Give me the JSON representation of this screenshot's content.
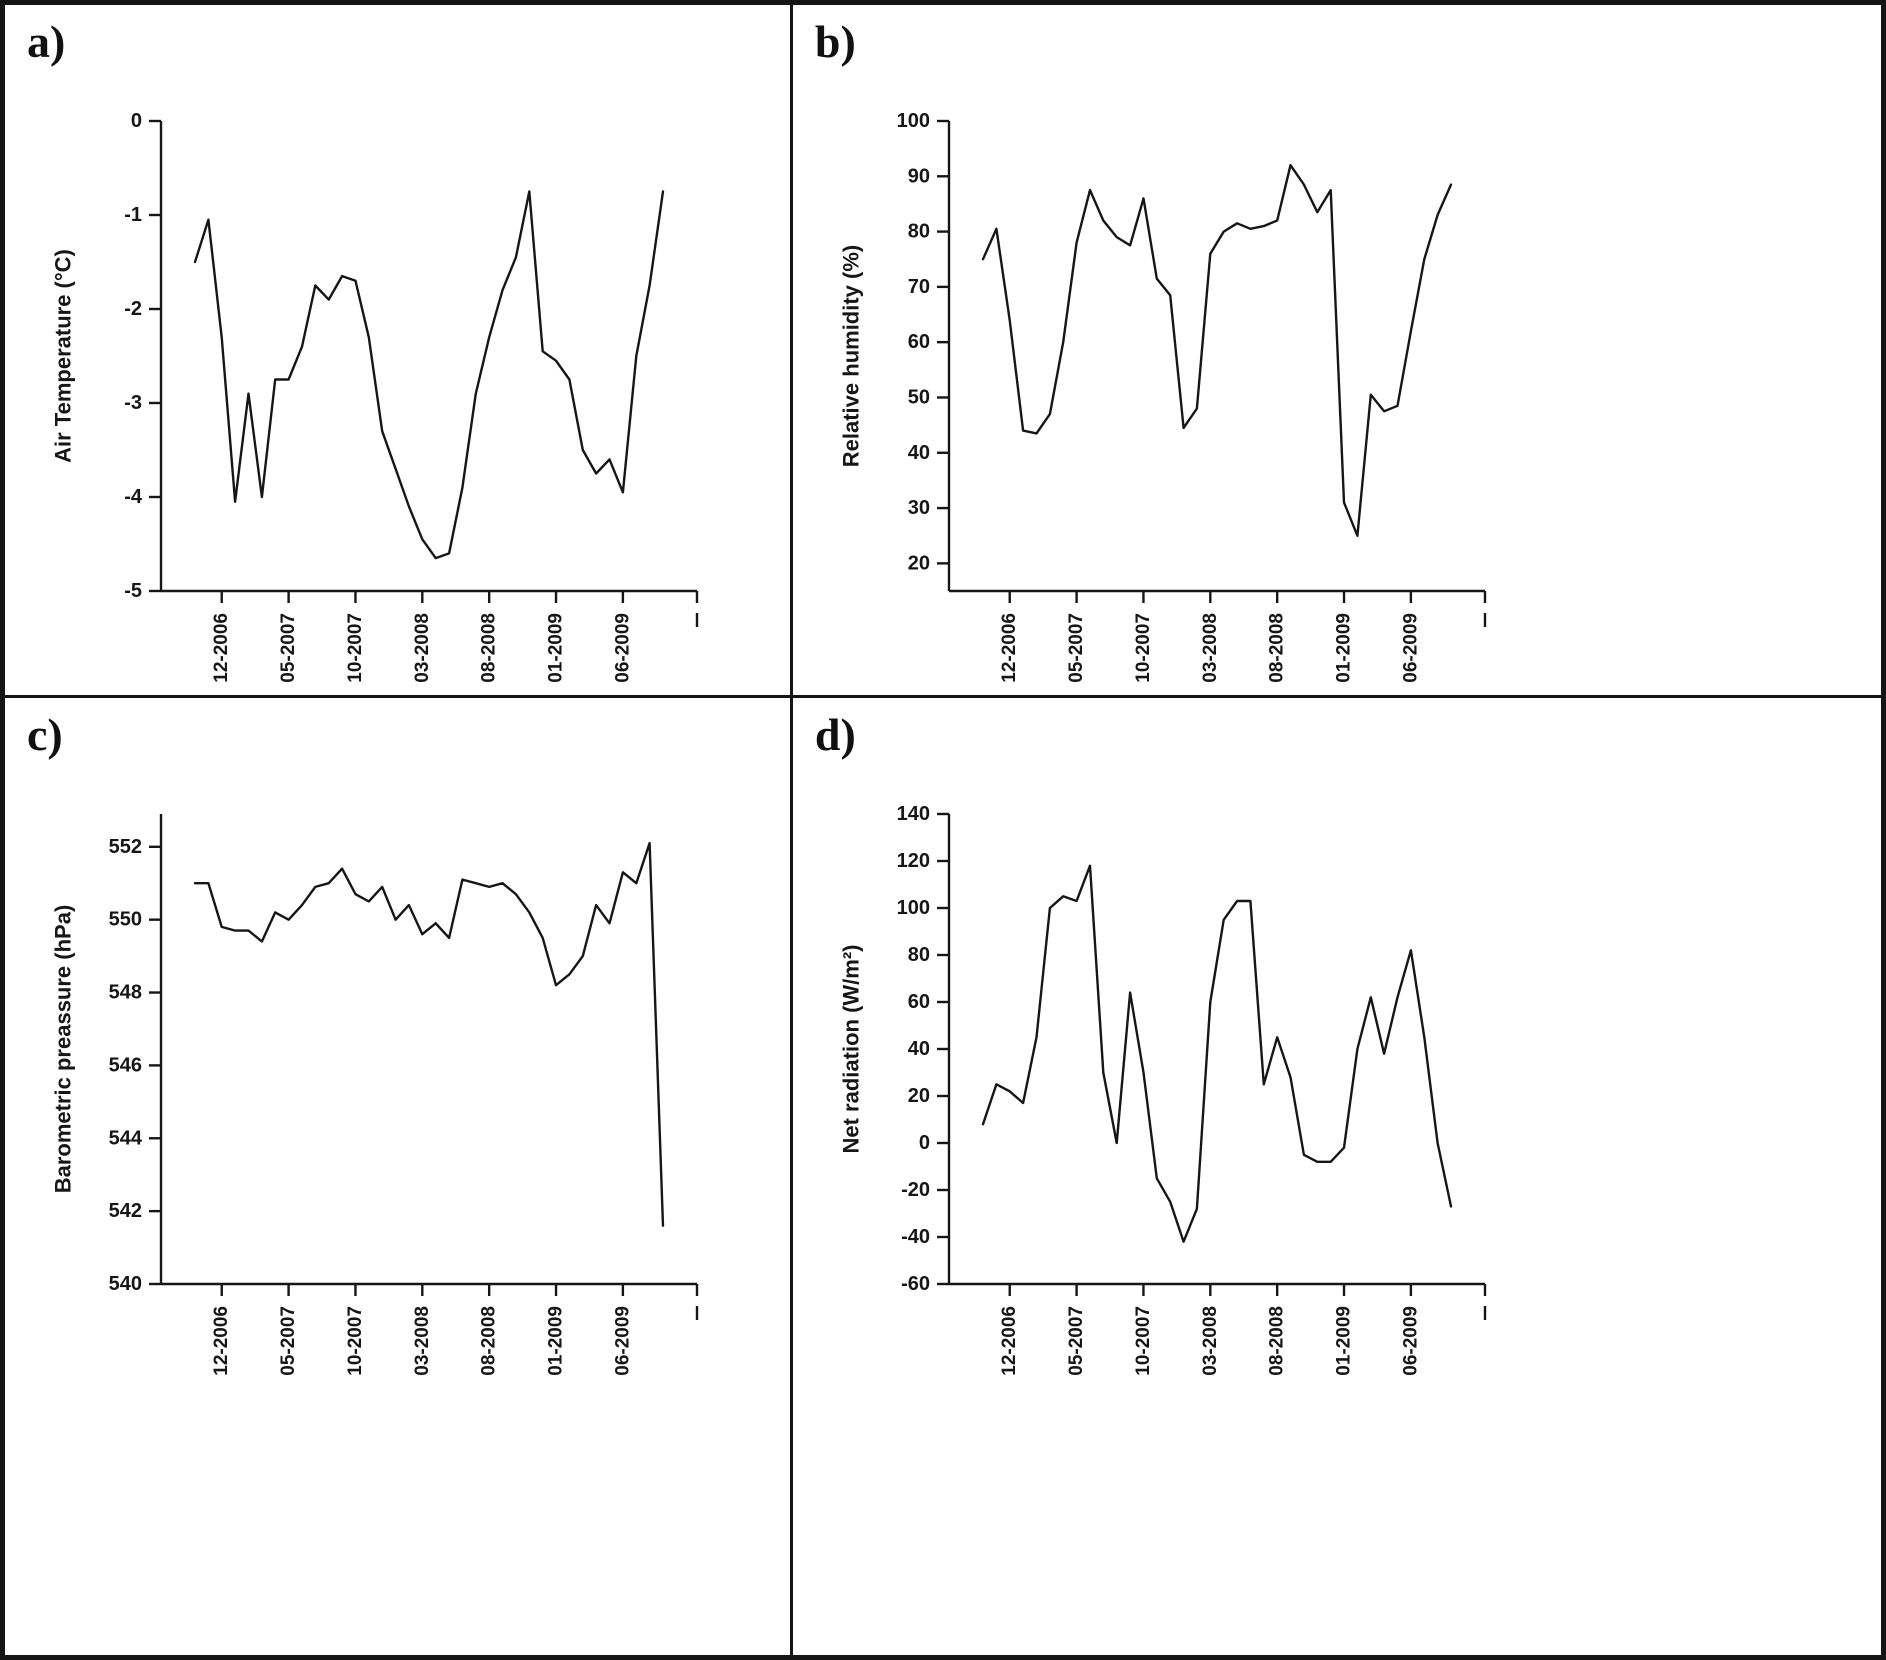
{
  "figure": {
    "background": "#ffffff",
    "border_color": "#151515"
  },
  "chart_data": [
    {
      "type": "line",
      "panel_label": "a)",
      "title": "",
      "xlabel": "",
      "ylabel": "Air Temperature (°C)",
      "line_color": "#161616",
      "grid": false,
      "legend": "none",
      "ylim": [
        -5,
        0
      ],
      "yticks": [
        0,
        -1,
        -2,
        -3,
        -4,
        -5
      ],
      "xtick_labels": [
        "12-2006",
        "05-2007",
        "10-2007",
        "03-2008",
        "08-2008",
        "01-2009",
        "06-2009"
      ],
      "xtick_indices": [
        2,
        7,
        12,
        17,
        22,
        27,
        32
      ],
      "x": [
        "10-2006",
        "11-2006",
        "12-2006",
        "01-2007",
        "02-2007",
        "03-2007",
        "04-2007",
        "05-2007",
        "06-2007",
        "07-2007",
        "08-2007",
        "09-2007",
        "10-2007",
        "11-2007",
        "12-2007",
        "01-2008",
        "02-2008",
        "03-2008",
        "04-2008",
        "05-2008",
        "06-2008",
        "07-2008",
        "08-2008",
        "09-2008",
        "10-2008",
        "11-2008",
        "12-2008",
        "01-2009",
        "02-2009",
        "03-2009",
        "04-2009",
        "05-2009",
        "06-2009",
        "07-2009",
        "08-2009",
        "09-2009"
      ],
      "values": [
        -1.5,
        -1.05,
        -2.3,
        -4.05,
        -2.9,
        -4.0,
        -2.75,
        -2.75,
        -2.4,
        -1.75,
        -1.9,
        -1.65,
        -1.7,
        -2.3,
        -3.3,
        -3.7,
        -4.1,
        -4.45,
        -4.65,
        -4.6,
        -3.9,
        -2.9,
        -2.3,
        -1.8,
        -1.45,
        -0.75,
        -2.45,
        -2.55,
        -2.75,
        -3.5,
        -3.75,
        -3.6,
        -3.95,
        -2.5,
        -1.75,
        -0.75
      ]
    },
    {
      "type": "line",
      "panel_label": "b)",
      "title": "",
      "xlabel": "",
      "ylabel": "Relative humidity (%)",
      "line_color": "#161616",
      "grid": false,
      "legend": "none",
      "ylim": [
        15,
        100
      ],
      "yticks": [
        100,
        90,
        80,
        70,
        60,
        50,
        40,
        30,
        20
      ],
      "xtick_labels": [
        "12-2006",
        "05-2007",
        "10-2007",
        "03-2008",
        "08-2008",
        "01-2009",
        "06-2009"
      ],
      "xtick_indices": [
        2,
        7,
        12,
        17,
        22,
        27,
        32
      ],
      "x": [
        "10-2006",
        "11-2006",
        "12-2006",
        "01-2007",
        "02-2007",
        "03-2007",
        "04-2007",
        "05-2007",
        "06-2007",
        "07-2007",
        "08-2007",
        "09-2007",
        "10-2007",
        "11-2007",
        "12-2007",
        "01-2008",
        "02-2008",
        "03-2008",
        "04-2008",
        "05-2008",
        "06-2008",
        "07-2008",
        "08-2008",
        "09-2008",
        "10-2008",
        "11-2008",
        "12-2008",
        "01-2009",
        "02-2009",
        "03-2009",
        "04-2009",
        "05-2009",
        "06-2009",
        "07-2009",
        "08-2009",
        "09-2009"
      ],
      "values": [
        75,
        80.5,
        64,
        44,
        43.5,
        47,
        60,
        78,
        87.5,
        82,
        79,
        77.5,
        86,
        71.5,
        68.5,
        44.5,
        48,
        76,
        80,
        81.5,
        80.5,
        81,
        82,
        92,
        88.5,
        83.5,
        87.5,
        31,
        25,
        50.5,
        47.5,
        48.5,
        62,
        75,
        83,
        88.5
      ]
    },
    {
      "type": "line",
      "panel_label": "c)",
      "title": "",
      "xlabel": "",
      "ylabel": "Barometric preassure (hPa)",
      "line_color": "#161616",
      "grid": false,
      "legend": "none",
      "ylim": [
        540,
        552.9
      ],
      "yticks": [
        552,
        550,
        548,
        546,
        544,
        542,
        540
      ],
      "xtick_labels": [
        "12-2006",
        "05-2007",
        "10-2007",
        "03-2008",
        "08-2008",
        "01-2009",
        "06-2009"
      ],
      "xtick_indices": [
        2,
        7,
        12,
        17,
        22,
        27,
        32
      ],
      "x": [
        "10-2006",
        "11-2006",
        "12-2006",
        "01-2007",
        "02-2007",
        "03-2007",
        "04-2007",
        "05-2007",
        "06-2007",
        "07-2007",
        "08-2007",
        "09-2007",
        "10-2007",
        "11-2007",
        "12-2007",
        "01-2008",
        "02-2008",
        "03-2008",
        "04-2008",
        "05-2008",
        "06-2008",
        "07-2008",
        "08-2008",
        "09-2008",
        "10-2008",
        "11-2008",
        "12-2008",
        "01-2009",
        "02-2009",
        "03-2009",
        "04-2009",
        "05-2009",
        "06-2009",
        "07-2009",
        "08-2009",
        "09-2009"
      ],
      "values": [
        551.0,
        551.0,
        549.8,
        549.7,
        549.7,
        549.4,
        550.2,
        550.0,
        550.4,
        550.9,
        551.0,
        551.4,
        550.7,
        550.5,
        550.9,
        550.0,
        550.4,
        549.6,
        549.9,
        549.5,
        551.1,
        551.0,
        550.9,
        551.0,
        550.7,
        550.2,
        549.5,
        548.2,
        548.5,
        549.0,
        550.4,
        549.9,
        551.3,
        551.0,
        552.1,
        541.6
      ]
    },
    {
      "type": "line",
      "panel_label": "d)",
      "title": "",
      "xlabel": "",
      "ylabel": "Net radiation (W/m²)",
      "line_color": "#161616",
      "grid": false,
      "legend": "none",
      "ylim": [
        -60,
        140
      ],
      "yticks": [
        140,
        120,
        100,
        80,
        60,
        40,
        20,
        0,
        -20,
        -40,
        -60
      ],
      "xtick_labels": [
        "12-2006",
        "05-2007",
        "10-2007",
        "03-2008",
        "08-2008",
        "01-2009",
        "06-2009"
      ],
      "xtick_indices": [
        2,
        7,
        12,
        17,
        22,
        27,
        32
      ],
      "x": [
        "10-2006",
        "11-2006",
        "12-2006",
        "01-2007",
        "02-2007",
        "03-2007",
        "04-2007",
        "05-2007",
        "06-2007",
        "07-2007",
        "08-2007",
        "09-2007",
        "10-2007",
        "11-2007",
        "12-2007",
        "01-2008",
        "02-2008",
        "03-2008",
        "04-2008",
        "05-2008",
        "06-2008",
        "07-2008",
        "08-2008",
        "09-2008",
        "10-2008",
        "11-2008",
        "12-2008",
        "01-2009",
        "02-2009",
        "03-2009",
        "04-2009",
        "05-2009",
        "06-2009",
        "07-2009",
        "08-2009",
        "09-2009"
      ],
      "values": [
        8,
        25,
        22,
        17,
        45,
        100,
        105,
        103,
        118,
        30,
        0,
        64,
        30,
        -15,
        -25,
        -42,
        -28,
        60,
        95,
        103,
        103,
        25,
        45,
        28,
        -5,
        -8,
        -8,
        -2,
        40,
        62,
        38,
        62,
        82,
        45,
        0,
        -27
      ]
    }
  ]
}
